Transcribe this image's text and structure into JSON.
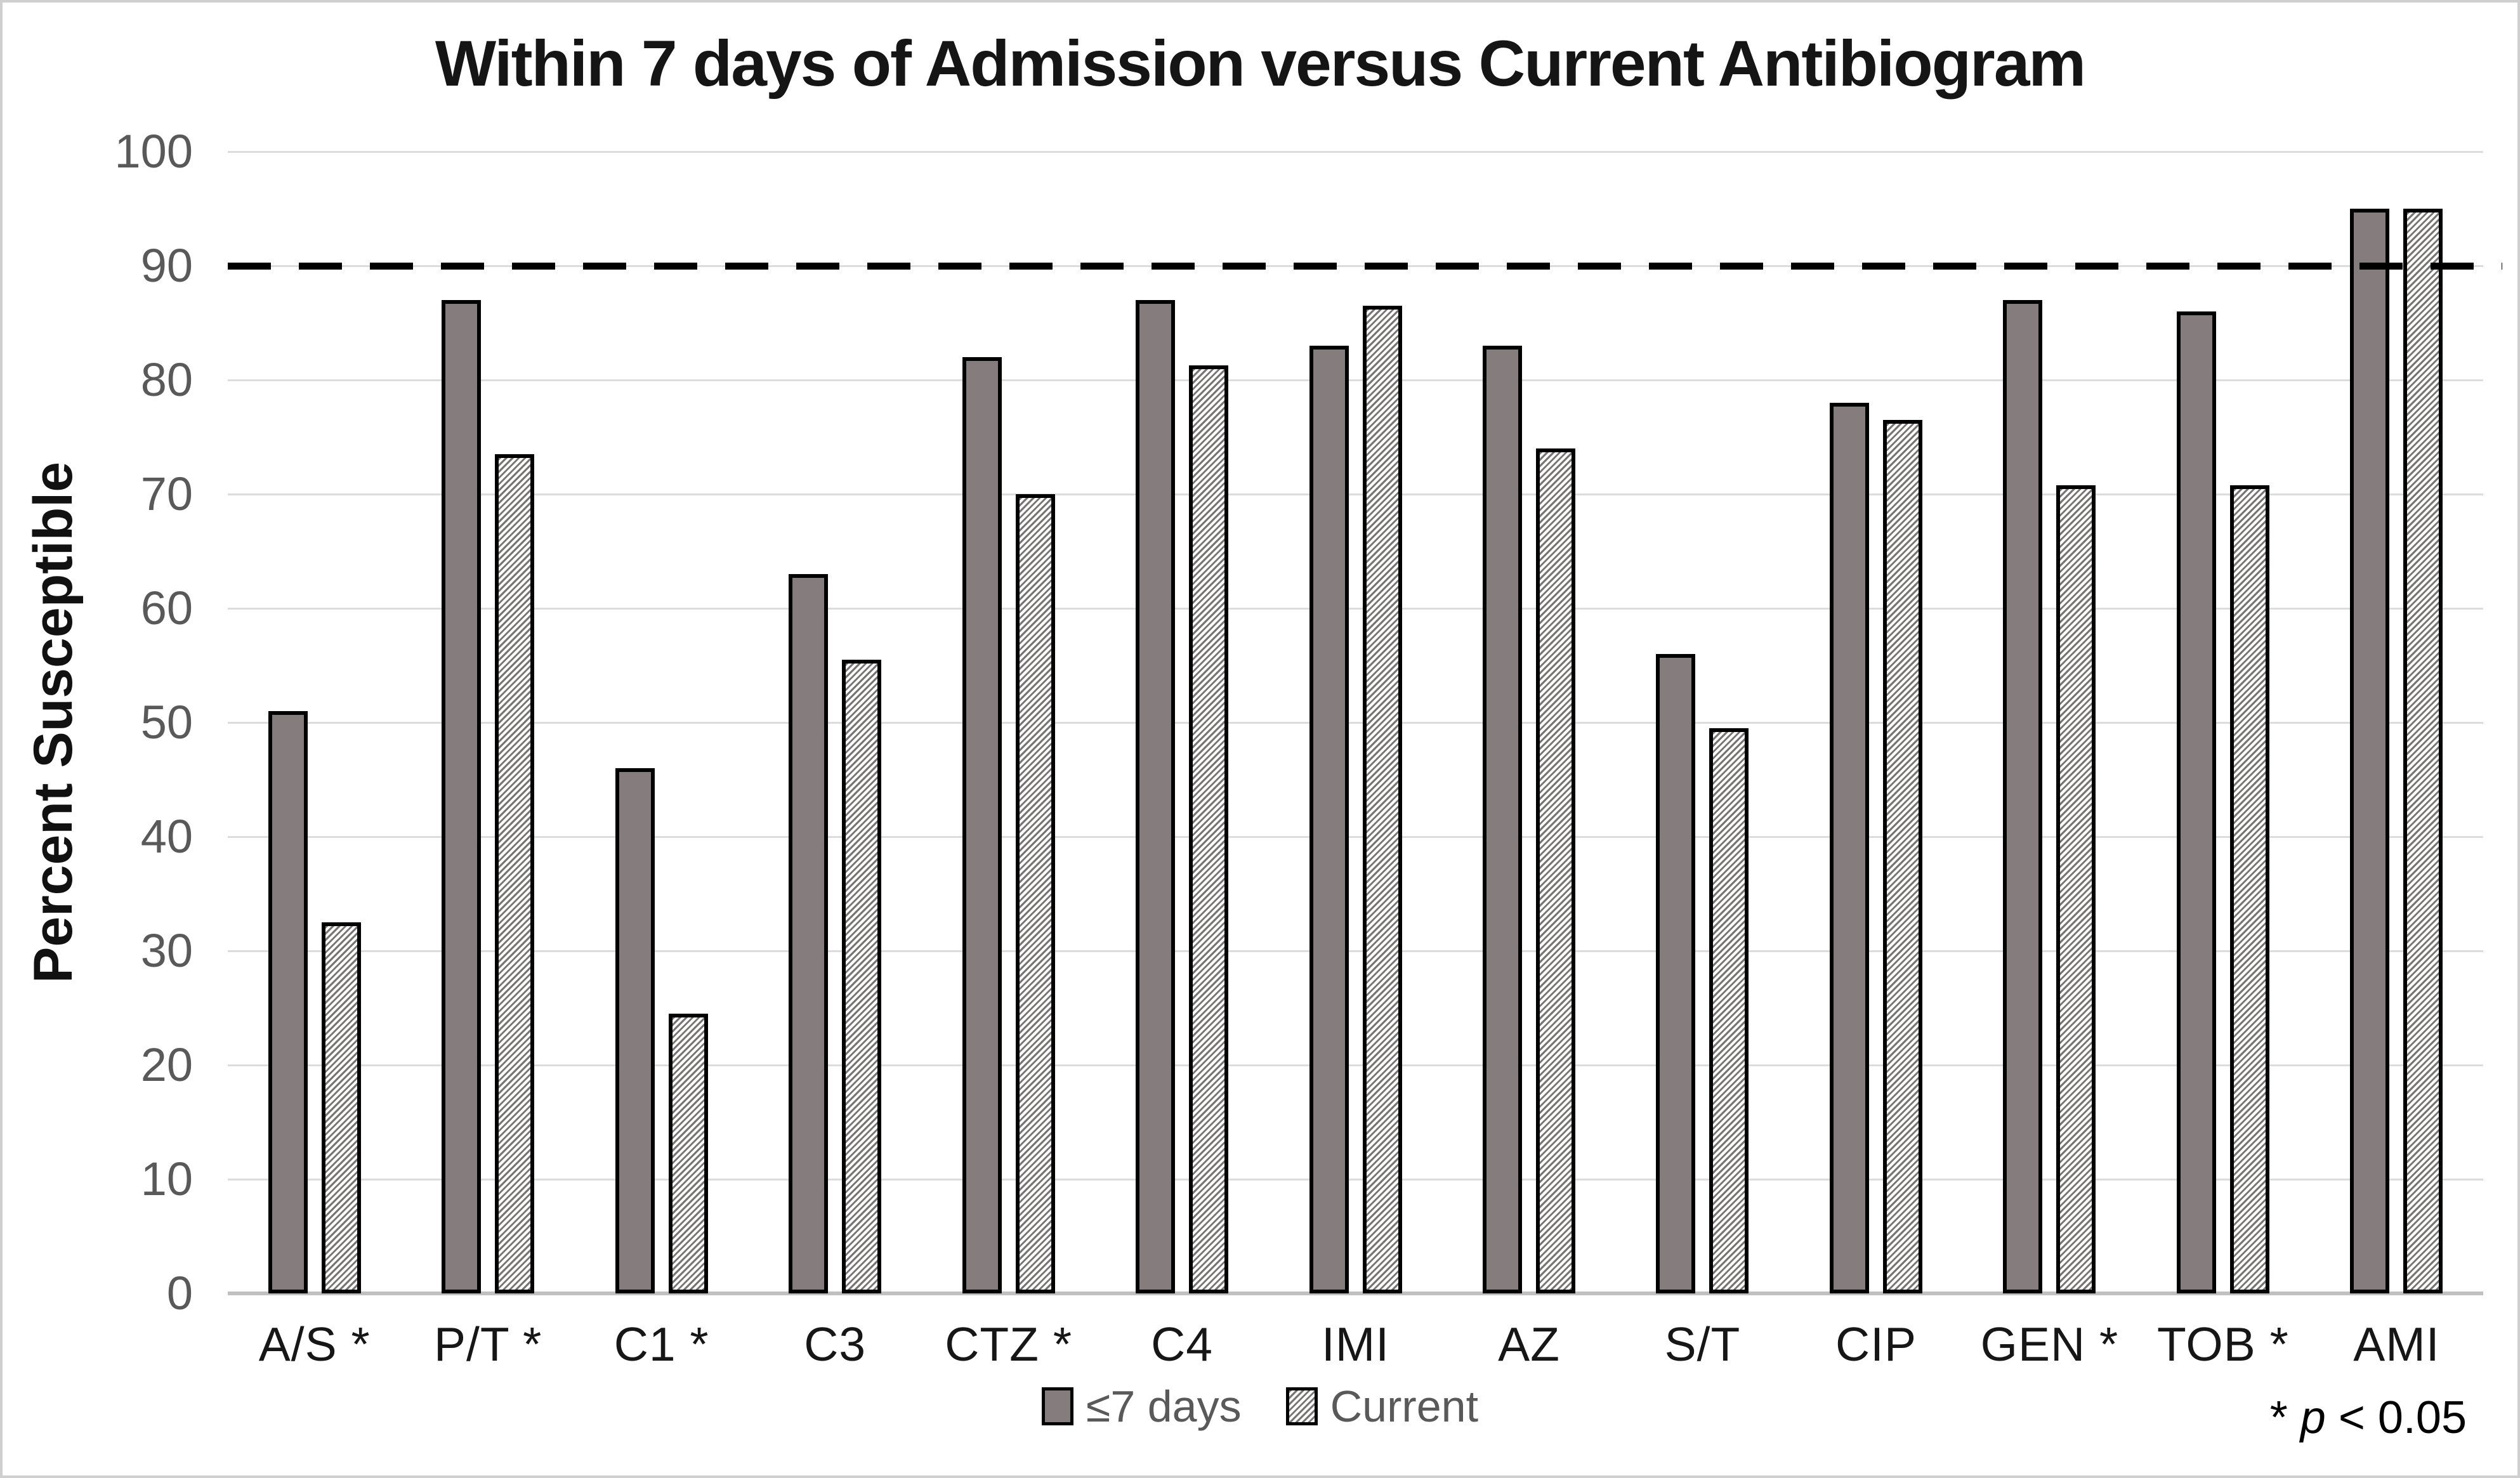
{
  "title": "Within 7 days of Admission versus Current Antibiogram",
  "y_axis": {
    "label": "Percent Susceptible",
    "ticks": [
      0,
      10,
      20,
      30,
      40,
      50,
      60,
      70,
      80,
      90,
      100
    ]
  },
  "footnote": {
    "prefix": "* ",
    "italic": "p",
    "suffix": " < 0.05"
  },
  "colors": {
    "solid_bar_fill": "#857d7d",
    "hatch_line": "#7b7474",
    "hatch_background": "#ffffff",
    "bar_border": "#000000",
    "gridline": "#dcdcdc",
    "axis_line": "#c0c0c0",
    "reference_line": "#000000",
    "tick_label": "#595959",
    "legend_text": "#595959"
  },
  "chart_data": {
    "type": "bar",
    "title": "Within 7 days of Admission versus Current Antibiogram",
    "categories": [
      "A/S *",
      "P/T *",
      "C1 *",
      "C3",
      "CTZ *",
      "C4",
      "IMI",
      "AZ",
      "S/T",
      "CIP",
      "GEN *",
      "TOB *",
      "AMI"
    ],
    "series": [
      {
        "name": "≤7 days",
        "style": "solid",
        "values": [
          51,
          87,
          46,
          63,
          82,
          87,
          83,
          83,
          56,
          78,
          87,
          86,
          95
        ]
      },
      {
        "name": "Current",
        "style": "hatched",
        "values": [
          32.5,
          73.5,
          24.5,
          55.5,
          70,
          81.3,
          86.5,
          74,
          49.5,
          76.5,
          70.8,
          70.8,
          95
        ]
      }
    ],
    "xlabel": "",
    "ylabel": "Percent Susceptible",
    "ylim": [
      0,
      100
    ],
    "y_tick_step": 10,
    "grid": true,
    "reference_line_y": 90,
    "reference_line_style": "dashed",
    "legend_position": "bottom",
    "annotation": "* p < 0.05"
  }
}
